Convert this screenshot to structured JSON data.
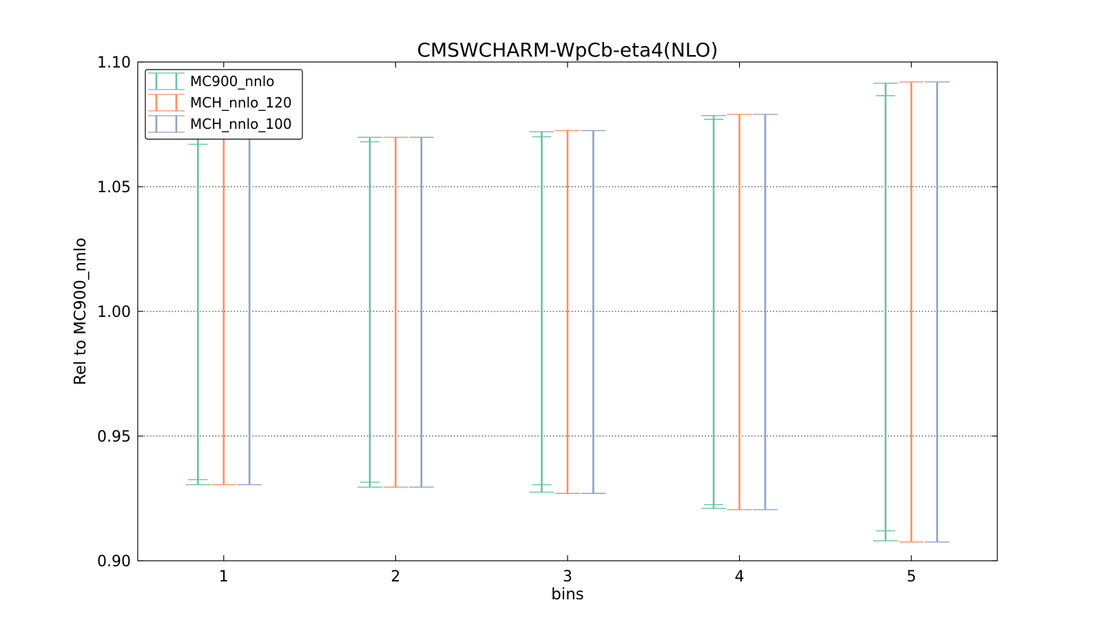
{
  "chart_data": {
    "type": "errorbar",
    "title": "CMSWCHARM-WpCb-eta4(NLO)",
    "xlabel": "bins",
    "ylabel": "Rel to MC900_nnlo",
    "xlim": [
      0.5,
      5.5
    ],
    "ylim": [
      0.9,
      1.1
    ],
    "xticks": [
      "1",
      "2",
      "3",
      "4",
      "5"
    ],
    "yticks": [
      "0.90",
      "0.95",
      "1.00",
      "1.05",
      "1.10"
    ],
    "grid": "horizontal-dotted",
    "legend_position": "top-left",
    "bins": [
      1,
      2,
      3,
      4,
      5
    ],
    "series": [
      {
        "name": "MC900_nnlo",
        "color": "#66c2a5",
        "outer_low": [
          0.9305,
          0.9295,
          0.9275,
          0.921,
          0.908
        ],
        "outer_high": [
          1.0705,
          1.0698,
          1.072,
          1.0785,
          1.0915
        ],
        "inner_low": [
          0.9325,
          0.9315,
          0.9305,
          0.9225,
          0.912
        ],
        "inner_high": [
          1.067,
          1.068,
          1.07,
          1.077,
          1.0865
        ]
      },
      {
        "name": "MCH_nnlo_120",
        "color": "#fc8d62",
        "low": [
          0.9305,
          0.9295,
          0.927,
          0.9205,
          0.9075
        ],
        "high": [
          1.0705,
          1.0698,
          1.0725,
          1.079,
          1.092
        ]
      },
      {
        "name": "MCH_nnlo_100",
        "color": "#8da0cb",
        "low": [
          0.9305,
          0.9295,
          0.927,
          0.9205,
          0.9075
        ],
        "high": [
          1.0705,
          1.0698,
          1.0725,
          1.079,
          1.092
        ]
      }
    ]
  }
}
